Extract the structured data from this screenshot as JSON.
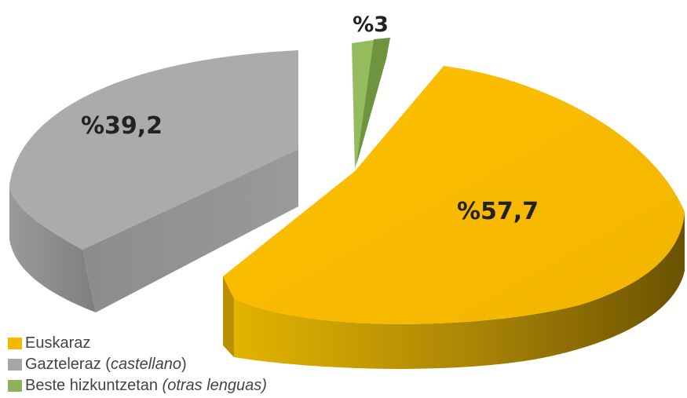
{
  "chart_data": {
    "type": "pie",
    "style": "3d-exploded",
    "series": [
      {
        "name": "Euskaraz",
        "note": "",
        "value": 57.7,
        "label": "%57,7",
        "color": "#F5B800"
      },
      {
        "name": "Gazteleraz",
        "note": "castellano",
        "value": 39.2,
        "label": "%39,2",
        "color": "#A6A6A6"
      },
      {
        "name": "Beste hizkuntzetan",
        "note": "otras lenguas",
        "value": 3,
        "label": "%3",
        "color": "#8DB35A"
      }
    ],
    "legend_position": "bottom-left"
  }
}
